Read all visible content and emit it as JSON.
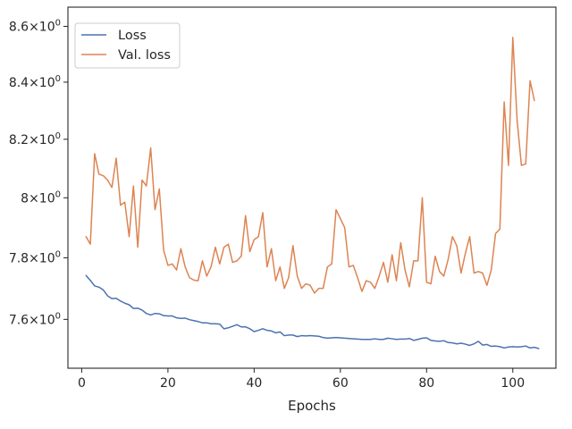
{
  "chart_data": {
    "type": "line",
    "title": "",
    "xlabel": "Epochs",
    "ylabel": "",
    "yscale": "log",
    "xlim": [
      -3.2,
      110
    ],
    "ylim": [
      7.445,
      8.67
    ],
    "grid": false,
    "legend_position": "top-left",
    "x_ticks": [
      {
        "value": 0,
        "label": "0"
      },
      {
        "value": 20,
        "label": "20"
      },
      {
        "value": 40,
        "label": "40"
      },
      {
        "value": 60,
        "label": "60"
      },
      {
        "value": 80,
        "label": "80"
      },
      {
        "value": 100,
        "label": "100"
      }
    ],
    "y_ticks": [
      {
        "value": 7.6,
        "base": "7.6",
        "exp": "0"
      },
      {
        "value": 7.8,
        "base": "7.8",
        "exp": "0"
      },
      {
        "value": 8.0,
        "base": "8",
        "exp": "0"
      },
      {
        "value": 8.2,
        "base": "8.2",
        "exp": "0"
      },
      {
        "value": 8.4,
        "base": "8.4",
        "exp": "0"
      },
      {
        "value": 8.6,
        "base": "8.6",
        "exp": "0"
      }
    ],
    "series": [
      {
        "name": "Loss",
        "color": "#4c72b0",
        "x_start": 1,
        "values": [
          7.742,
          7.726,
          7.708,
          7.704,
          7.695,
          7.676,
          7.667,
          7.668,
          7.659,
          7.652,
          7.647,
          7.635,
          7.636,
          7.63,
          7.619,
          7.614,
          7.619,
          7.618,
          7.612,
          7.611,
          7.611,
          7.605,
          7.603,
          7.604,
          7.599,
          7.596,
          7.593,
          7.589,
          7.589,
          7.586,
          7.586,
          7.585,
          7.57,
          7.573,
          7.578,
          7.583,
          7.576,
          7.576,
          7.57,
          7.561,
          7.565,
          7.57,
          7.565,
          7.563,
          7.557,
          7.56,
          7.548,
          7.55,
          7.55,
          7.545,
          7.548,
          7.547,
          7.548,
          7.547,
          7.546,
          7.542,
          7.54,
          7.541,
          7.542,
          7.541,
          7.54,
          7.539,
          7.538,
          7.537,
          7.536,
          7.536,
          7.536,
          7.538,
          7.536,
          7.536,
          7.54,
          7.538,
          7.536,
          7.537,
          7.537,
          7.539,
          7.533,
          7.536,
          7.54,
          7.541,
          7.533,
          7.531,
          7.53,
          7.532,
          7.526,
          7.525,
          7.522,
          7.524,
          7.521,
          7.517,
          7.522,
          7.53,
          7.518,
          7.52,
          7.514,
          7.515,
          7.513,
          7.509,
          7.512,
          7.513,
          7.512,
          7.513,
          7.515,
          7.509,
          7.511,
          7.507
        ]
      },
      {
        "name": "Val. loss",
        "color": "#dd8452",
        "x_start": 1,
        "values": [
          7.87,
          7.845,
          8.15,
          8.08,
          8.075,
          8.06,
          8.035,
          8.135,
          7.975,
          7.985,
          7.87,
          8.04,
          7.835,
          8.06,
          8.04,
          8.17,
          7.96,
          8.03,
          7.825,
          7.775,
          7.78,
          7.76,
          7.83,
          7.77,
          7.735,
          7.727,
          7.725,
          7.79,
          7.74,
          7.77,
          7.835,
          7.78,
          7.835,
          7.845,
          7.785,
          7.79,
          7.805,
          7.94,
          7.82,
          7.86,
          7.87,
          7.95,
          7.77,
          7.83,
          7.725,
          7.77,
          7.7,
          7.735,
          7.84,
          7.74,
          7.7,
          7.715,
          7.71,
          7.685,
          7.7,
          7.7,
          7.77,
          7.78,
          7.96,
          7.93,
          7.9,
          7.77,
          7.775,
          7.735,
          7.69,
          7.725,
          7.72,
          7.7,
          7.74,
          7.785,
          7.72,
          7.81,
          7.725,
          7.85,
          7.76,
          7.705,
          7.79,
          7.79,
          8.0,
          7.72,
          7.715,
          7.805,
          7.755,
          7.74,
          7.795,
          7.87,
          7.84,
          7.75,
          7.815,
          7.87,
          7.75,
          7.755,
          7.75,
          7.71,
          7.76,
          7.88,
          7.895,
          8.33,
          8.11,
          8.56,
          8.265,
          8.11,
          8.115,
          8.405,
          8.335
        ]
      }
    ]
  }
}
